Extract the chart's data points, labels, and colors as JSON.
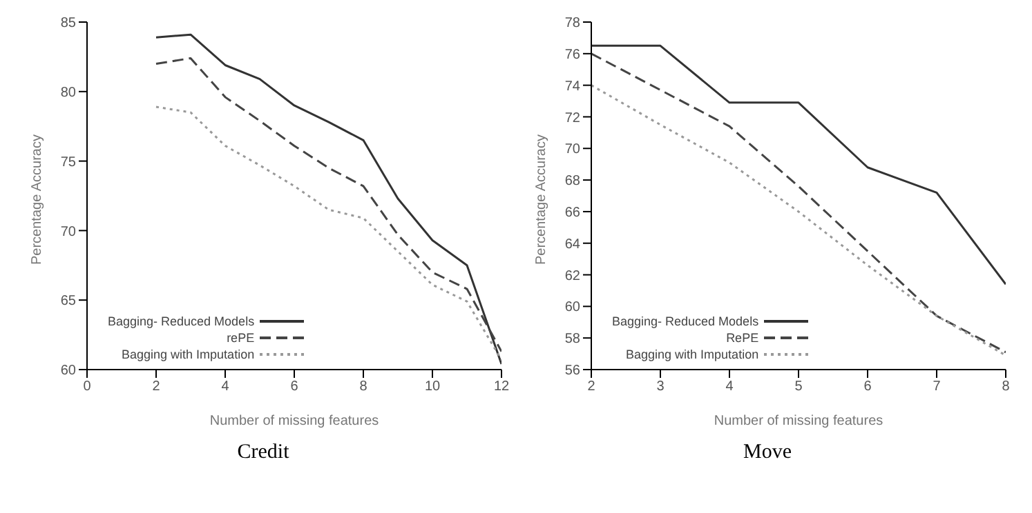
{
  "chart_data": [
    {
      "type": "line",
      "title": "Credit",
      "xlabel": "Number of missing features",
      "ylabel": "Percentage Accuracy",
      "x": [
        2,
        3,
        4,
        5,
        6,
        7,
        8,
        9,
        10,
        11,
        12
      ],
      "xlim": [
        0,
        12
      ],
      "xticks": [
        0,
        2,
        4,
        6,
        8,
        10,
        12
      ],
      "ylim": [
        60,
        85
      ],
      "yticks": [
        60,
        65,
        70,
        75,
        80,
        85
      ],
      "legend": "bottom left",
      "grid": false,
      "marker": "none",
      "series": [
        {
          "name": "Bagging- Reduced Models",
          "color": "#333333",
          "line_style": "solid",
          "values": [
            83.9,
            84.1,
            81.9,
            80.9,
            79.0,
            77.8,
            76.5,
            72.3,
            69.3,
            67.5,
            60.4
          ]
        },
        {
          "name": "rePE",
          "color": "#444444",
          "line_style": "dashed",
          "values": [
            82.0,
            82.4,
            79.6,
            77.9,
            76.1,
            74.5,
            73.2,
            69.7,
            67.0,
            65.8,
            61.3
          ]
        },
        {
          "name": "Bagging with Imputation",
          "color": "#999999",
          "line_style": "dotted",
          "values": [
            78.9,
            78.5,
            76.1,
            74.7,
            73.2,
            71.5,
            70.9,
            68.5,
            66.1,
            64.9,
            60.7
          ]
        }
      ]
    },
    {
      "type": "line",
      "title": "Move",
      "xlabel": "Number of missing features",
      "ylabel": "Percentage Accuracy",
      "x": [
        2,
        3,
        4,
        5,
        6,
        7,
        8
      ],
      "xlim": [
        2,
        8
      ],
      "xticks": [
        2,
        3,
        4,
        5,
        6,
        7,
        8
      ],
      "ylim": [
        56,
        78
      ],
      "yticks": [
        56,
        58,
        60,
        62,
        64,
        66,
        68,
        70,
        72,
        74,
        76,
        78
      ],
      "legend": "bottom left",
      "grid": false,
      "marker": "none",
      "series": [
        {
          "name": "Bagging- Reduced Models",
          "color": "#333333",
          "line_style": "solid",
          "values": [
            76.5,
            76.5,
            72.9,
            72.9,
            68.8,
            67.2,
            61.4
          ]
        },
        {
          "name": "RePE",
          "color": "#444444",
          "line_style": "dashed",
          "values": [
            76.0,
            73.7,
            71.4,
            67.6,
            63.5,
            59.4,
            57.1
          ]
        },
        {
          "name": "Bagging with Imputation",
          "color": "#999999",
          "line_style": "dotted",
          "values": [
            74.0,
            71.5,
            69.1,
            66.0,
            62.6,
            59.4,
            56.9
          ]
        }
      ]
    }
  ]
}
